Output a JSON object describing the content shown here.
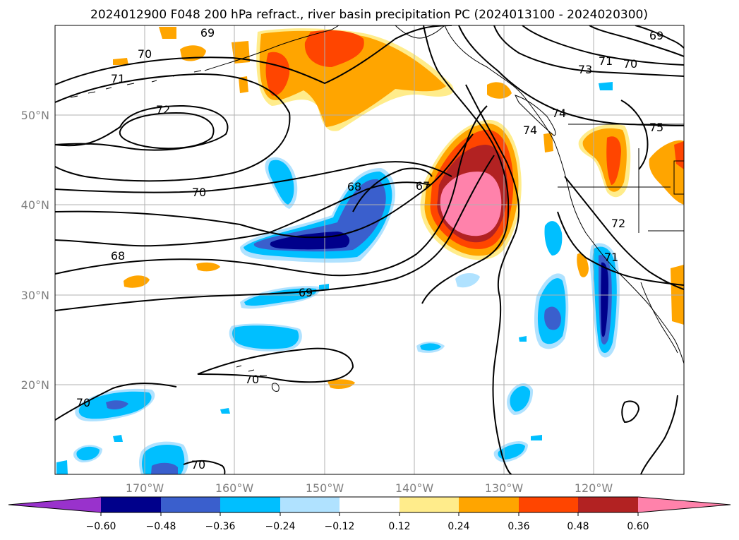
{
  "title": "2024012900 F048 200 hPa refract., river basin precipitation PC (2024013100 - 2024020300)",
  "lon_labels": [
    "170°W",
    "160°W",
    "150°W",
    "140°W",
    "130°W",
    "120°W"
  ],
  "lat_labels": [
    "50°N",
    "40°N",
    "30°N",
    "20°N"
  ],
  "colorbar": {
    "colors": [
      "#9932cc",
      "#00008b",
      "#3a5fcd",
      "#00bfff",
      "#b0e2ff",
      "#ffffff",
      "#ffec8b",
      "#ffa500",
      "#ff4500",
      "#b22222",
      "#ff82ab"
    ],
    "ticks": [
      "−0.60",
      "−0.48",
      "−0.36",
      "−0.24",
      "−0.12",
      "0.12",
      "0.24",
      "0.36",
      "0.48",
      "0.60"
    ]
  },
  "contour_labels": [
    "69",
    "70",
    "71",
    "72",
    "70",
    "68",
    "67",
    "68",
    "69",
    "70",
    "70",
    "70",
    "74",
    "74",
    "73",
    "71",
    "70",
    "69",
    "75",
    "72",
    "71"
  ]
}
